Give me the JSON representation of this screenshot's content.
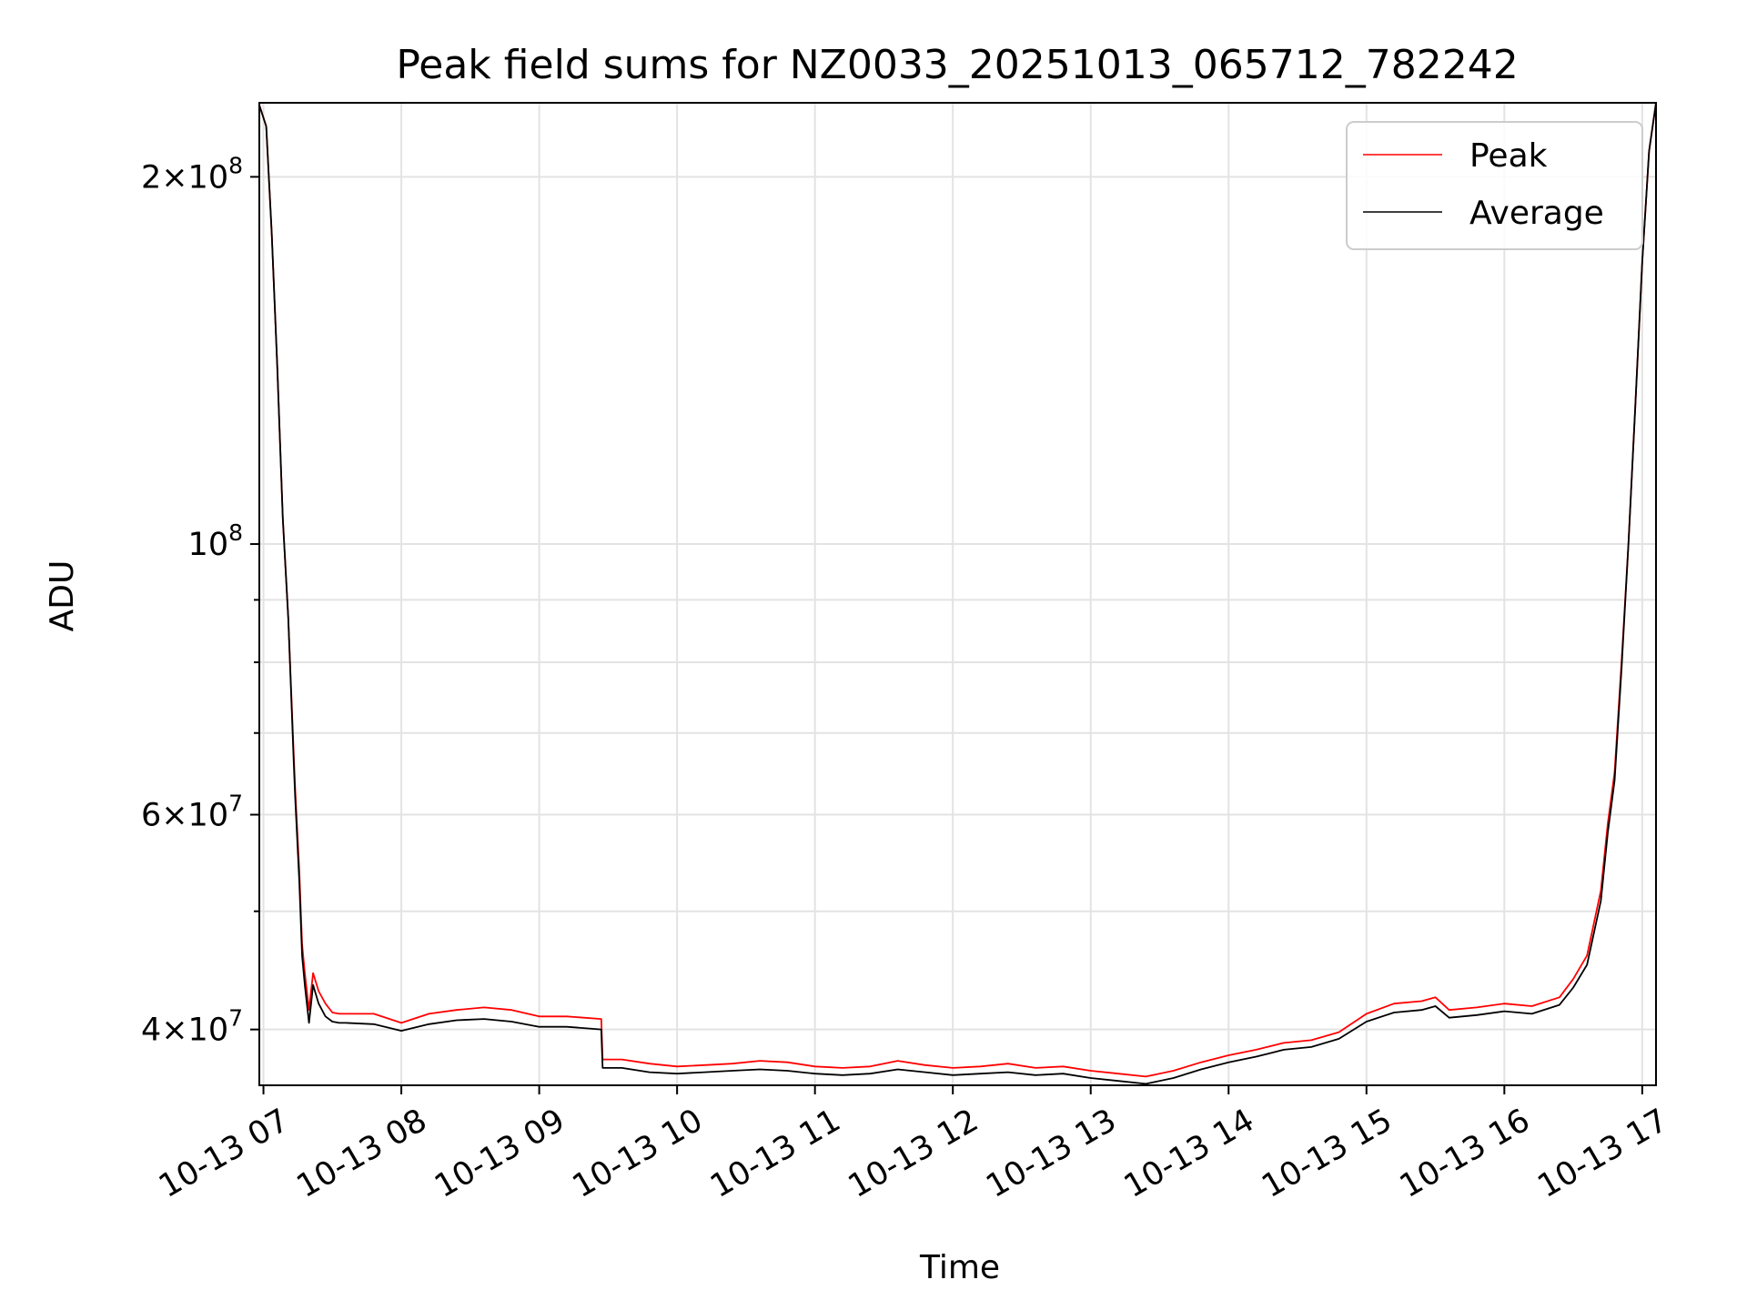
{
  "chart_data": {
    "type": "line",
    "title": "Peak field sums for NZ0033_20251013_065712_782242",
    "xlabel": "Time",
    "ylabel": "ADU",
    "x_unit": "hour of day on 2025-10-13",
    "xlim": [
      6.97,
      17.1
    ],
    "ylim": [
      36000000.0,
      230000000.0
    ],
    "yscale": "log",
    "grid": true,
    "legend_position": "top-right",
    "x_ticks": [
      {
        "value": 7,
        "label": "10-13 07"
      },
      {
        "value": 8,
        "label": "10-13 08"
      },
      {
        "value": 9,
        "label": "10-13 09"
      },
      {
        "value": 10,
        "label": "10-13 10"
      },
      {
        "value": 11,
        "label": "10-13 11"
      },
      {
        "value": 12,
        "label": "10-13 12"
      },
      {
        "value": 13,
        "label": "10-13 13"
      },
      {
        "value": 14,
        "label": "10-13 14"
      },
      {
        "value": 15,
        "label": "10-13 15"
      },
      {
        "value": 16,
        "label": "10-13 16"
      },
      {
        "value": 17,
        "label": "10-13 17"
      }
    ],
    "y_major_ticks": [
      {
        "value": 40000000,
        "mantissa": "4",
        "exp": "7"
      },
      {
        "value": 60000000,
        "mantissa": "6",
        "exp": "7"
      },
      {
        "value": 100000000,
        "mantissa": "",
        "exp": "8"
      },
      {
        "value": 200000000,
        "mantissa": "2",
        "exp": "8"
      }
    ],
    "y_minor_ticks": [
      50000000,
      70000000,
      80000000,
      90000000
    ],
    "series": [
      {
        "name": "Peak",
        "color": "#ff0000",
        "x": [
          6.97,
          7.02,
          7.06,
          7.1,
          7.14,
          7.18,
          7.22,
          7.23,
          7.26,
          7.28,
          7.3,
          7.33,
          7.36,
          7.4,
          7.45,
          7.5,
          7.55,
          7.6,
          7.8,
          8.0,
          8.2,
          8.4,
          8.6,
          8.8,
          9.0,
          9.2,
          9.45,
          9.46,
          9.6,
          9.8,
          10.0,
          10.2,
          10.4,
          10.6,
          10.8,
          11.0,
          11.2,
          11.4,
          11.6,
          11.8,
          12.0,
          12.2,
          12.4,
          12.6,
          12.8,
          13.0,
          13.2,
          13.4,
          13.6,
          13.8,
          14.0,
          14.2,
          14.4,
          14.6,
          14.8,
          15.0,
          15.2,
          15.4,
          15.5,
          15.6,
          15.8,
          16.0,
          16.2,
          16.4,
          16.5,
          16.6,
          16.7,
          16.75,
          16.8,
          16.85,
          16.9,
          16.95,
          17.0,
          17.05,
          17.1
        ],
        "y": [
          229000000.0,
          220000000.0,
          180000000.0,
          140000000.0,
          105000000.0,
          87000000.0,
          67000000.0,
          63000000.0,
          54000000.0,
          47000000.0,
          44500000.0,
          41500000.0,
          44500000.0,
          43000000.0,
          42000000.0,
          41300000.0,
          41200000.0,
          41200000.0,
          41200000.0,
          40500000.0,
          41200000.0,
          41500000.0,
          41700000.0,
          41500000.0,
          41000000.0,
          41000000.0,
          40800000.0,
          37800000.0,
          37800000.0,
          37500000.0,
          37300000.0,
          37400000.0,
          37500000.0,
          37700000.0,
          37600000.0,
          37300000.0,
          37200000.0,
          37300000.0,
          37700000.0,
          37400000.0,
          37200000.0,
          37300000.0,
          37500000.0,
          37200000.0,
          37300000.0,
          37000000.0,
          36800000.0,
          36600000.0,
          37000000.0,
          37600000.0,
          38100000.0,
          38500000.0,
          39000000.0,
          39200000.0,
          39800000.0,
          41200000.0,
          42000000.0,
          42200000.0,
          42500000.0,
          41500000.0,
          41700000.0,
          42000000.0,
          41800000.0,
          42500000.0,
          44000000.0,
          46000000.0,
          52000000.0,
          59000000.0,
          65000000.0,
          80000000.0,
          100000000.0,
          130000000.0,
          170000000.0,
          210000000.0,
          230000000.0
        ]
      },
      {
        "name": "Average",
        "color": "#000000",
        "x": [
          6.97,
          7.02,
          7.06,
          7.1,
          7.14,
          7.18,
          7.22,
          7.23,
          7.26,
          7.28,
          7.3,
          7.33,
          7.36,
          7.4,
          7.45,
          7.5,
          7.55,
          7.6,
          7.8,
          8.0,
          8.2,
          8.4,
          8.6,
          8.8,
          9.0,
          9.2,
          9.45,
          9.46,
          9.6,
          9.8,
          10.0,
          10.2,
          10.4,
          10.6,
          10.8,
          11.0,
          11.2,
          11.4,
          11.6,
          11.8,
          12.0,
          12.2,
          12.4,
          12.6,
          12.8,
          13.0,
          13.2,
          13.4,
          13.6,
          13.8,
          14.0,
          14.2,
          14.4,
          14.6,
          14.8,
          15.0,
          15.2,
          15.4,
          15.5,
          15.6,
          15.8,
          16.0,
          16.2,
          16.4,
          16.5,
          16.6,
          16.7,
          16.75,
          16.8,
          16.85,
          16.9,
          16.95,
          17.0,
          17.05,
          17.1
        ],
        "y": [
          229000000.0,
          220000000.0,
          180000000.0,
          140000000.0,
          105000000.0,
          87000000.0,
          66000000.0,
          62000000.0,
          53000000.0,
          46000000.0,
          43500000.0,
          40500000.0,
          43500000.0,
          42000000.0,
          41000000.0,
          40600000.0,
          40500000.0,
          40500000.0,
          40400000.0,
          39900000.0,
          40400000.0,
          40700000.0,
          40800000.0,
          40600000.0,
          40200000.0,
          40200000.0,
          40000000.0,
          37200000.0,
          37200000.0,
          36900000.0,
          36800000.0,
          36900000.0,
          37000000.0,
          37100000.0,
          37000000.0,
          36800000.0,
          36700000.0,
          36800000.0,
          37100000.0,
          36900000.0,
          36700000.0,
          36800000.0,
          36900000.0,
          36700000.0,
          36800000.0,
          36500000.0,
          36300000.0,
          36100000.0,
          36500000.0,
          37100000.0,
          37600000.0,
          38000000.0,
          38500000.0,
          38700000.0,
          39300000.0,
          40600000.0,
          41300000.0,
          41500000.0,
          41800000.0,
          40900000.0,
          41100000.0,
          41400000.0,
          41200000.0,
          41900000.0,
          43300000.0,
          45200000.0,
          51000000.0,
          58000000.0,
          64000000.0,
          79000000.0,
          100000000.0,
          130000000.0,
          170000000.0,
          210000000.0,
          230000000.0
        ]
      }
    ]
  }
}
